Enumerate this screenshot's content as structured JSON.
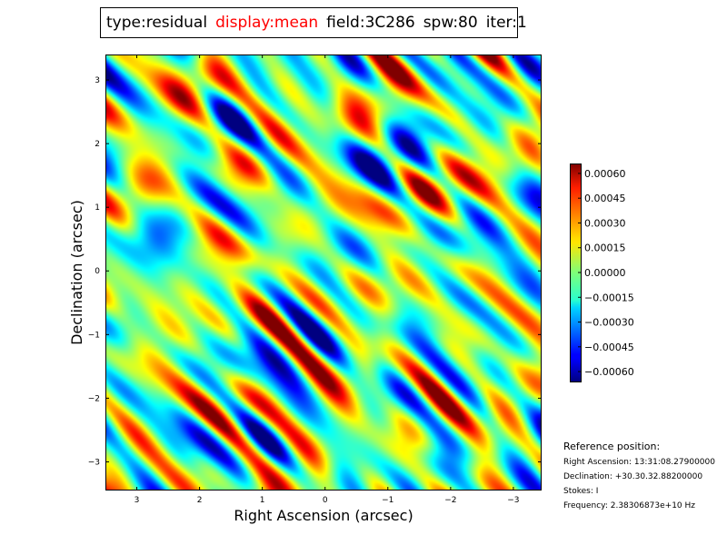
{
  "title": {
    "type": "type:residual",
    "display": "display:mean",
    "field": "field:3C286",
    "spw": "spw:80",
    "iter": "iter:1"
  },
  "colors": {
    "display_highlight": "#ff0000",
    "colormap": "jet"
  },
  "chart_data": {
    "type": "heatmap",
    "xlabel": "Right Ascension (arcsec)",
    "ylabel": "Declination (arcsec)",
    "xlim": [
      3.5,
      -3.45
    ],
    "ylim": [
      -3.45,
      3.4
    ],
    "x_ticks": [
      "3",
      "2",
      "1",
      "0",
      "−1",
      "−2",
      "−3"
    ],
    "x_tick_values": [
      3,
      2,
      1,
      0,
      -1,
      -2,
      -3
    ],
    "y_ticks": [
      "3",
      "2",
      "1",
      "0",
      "−1",
      "−2",
      "−3"
    ],
    "y_tick_values": [
      3,
      2,
      1,
      0,
      -1,
      -2,
      -3
    ],
    "colorbar": {
      "range": [
        -0.00066,
        0.00066
      ],
      "ticks": [
        "0.00060",
        "0.00045",
        "0.00030",
        "0.00015",
        "0.00000",
        "−0.00015",
        "−0.00030",
        "−0.00045",
        "−0.00060"
      ],
      "tick_values": [
        0.0006,
        0.00045,
        0.0003,
        0.00015,
        0,
        -0.00015,
        -0.0003,
        -0.00045,
        -0.0006
      ]
    },
    "values_description": "residual noise pattern with diagonal stripes, values roughly within ±0.0006"
  },
  "reference": {
    "heading": "Reference position:",
    "ra": "Right Ascension: 13:31:08.27900000",
    "dec": "Declination: +30.30.32.88200000",
    "stokes": "Stokes: I",
    "freq": "Frequency: 2.38306873e+10 Hz"
  }
}
